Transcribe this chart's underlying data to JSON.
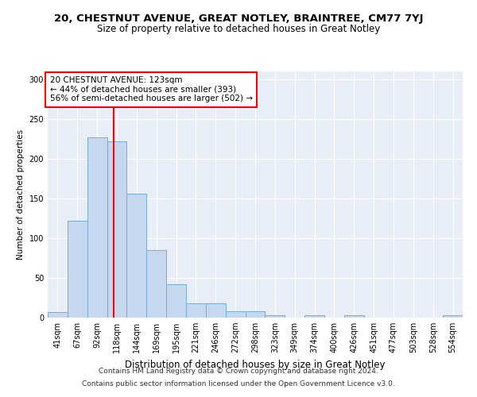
{
  "title": "20, CHESTNUT AVENUE, GREAT NOTLEY, BRAINTREE, CM77 7YJ",
  "subtitle": "Size of property relative to detached houses in Great Notley",
  "xlabel": "Distribution of detached houses by size in Great Notley",
  "ylabel": "Number of detached properties",
  "bar_color": "#c5d8f0",
  "bar_edge_color": "#7aadd4",
  "background_color": "#e8eef8",
  "grid_color": "white",
  "categories": [
    "41sqm",
    "67sqm",
    "92sqm",
    "118sqm",
    "144sqm",
    "169sqm",
    "195sqm",
    "221sqm",
    "246sqm",
    "272sqm",
    "298sqm",
    "323sqm",
    "349sqm",
    "374sqm",
    "400sqm",
    "426sqm",
    "451sqm",
    "477sqm",
    "503sqm",
    "528sqm",
    "554sqm"
  ],
  "values": [
    7,
    122,
    227,
    222,
    156,
    85,
    42,
    18,
    18,
    8,
    8,
    3,
    0,
    3,
    0,
    3,
    0,
    0,
    0,
    0,
    3
  ],
  "property_bar_index": 2.85,
  "annotation_line1": "20 CHESTNUT AVENUE: 123sqm",
  "annotation_line2": "← 44% of detached houses are smaller (393)",
  "annotation_line3": "56% of semi-detached houses are larger (502) →",
  "annotation_box_color": "white",
  "annotation_box_edge_color": "red",
  "vline_color": "red",
  "footer_line1": "Contains HM Land Registry data © Crown copyright and database right 2024.",
  "footer_line2": "Contains public sector information licensed under the Open Government Licence v3.0.",
  "ylim": [
    0,
    310
  ],
  "yticks": [
    0,
    50,
    100,
    150,
    200,
    250,
    300
  ],
  "title_fontsize": 9.5,
  "subtitle_fontsize": 8.5,
  "xlabel_fontsize": 8.5,
  "ylabel_fontsize": 7.5,
  "tick_fontsize": 7,
  "annotation_fontsize": 7.5,
  "footer_fontsize": 6.5
}
